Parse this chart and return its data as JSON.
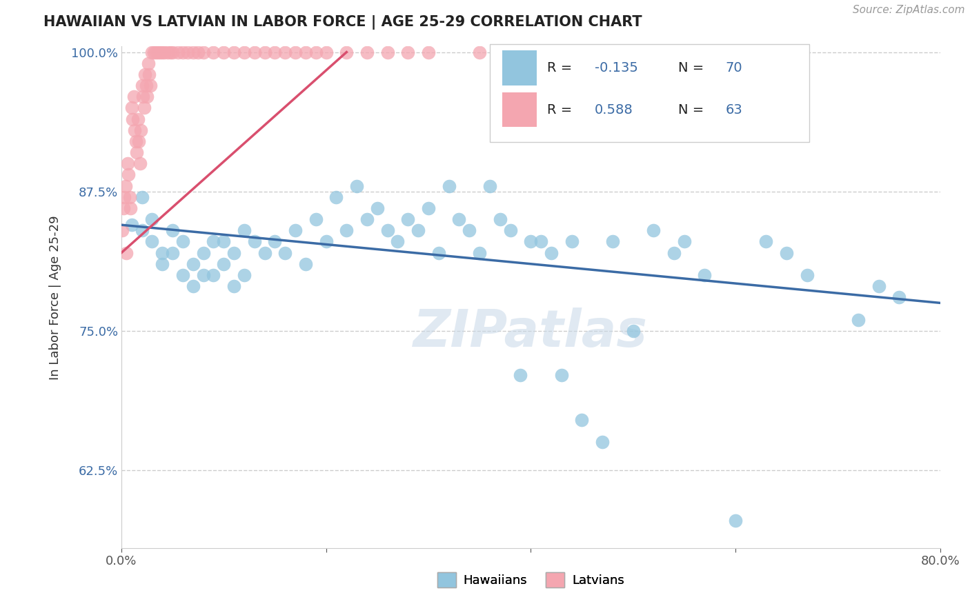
{
  "title": "HAWAIIAN VS LATVIAN IN LABOR FORCE | AGE 25-29 CORRELATION CHART",
  "source_text": "Source: ZipAtlas.com",
  "ylabel": "In Labor Force | Age 25-29",
  "xlim": [
    0.0,
    0.8
  ],
  "ylim": [
    0.555,
    1.005
  ],
  "xticks": [
    0.0,
    0.2,
    0.4,
    0.6,
    0.8
  ],
  "xtick_labels": [
    "0.0%",
    "",
    "",
    "",
    "80.0%"
  ],
  "yticks": [
    0.625,
    0.75,
    0.875,
    1.0
  ],
  "ytick_labels": [
    "62.5%",
    "75.0%",
    "87.5%",
    "100.0%"
  ],
  "hawaiian_color": "#92C5DE",
  "latvian_color": "#F4A6B0",
  "hawaiian_line_color": "#3B6BA5",
  "latvian_line_color": "#D94F6E",
  "background_color": "#FFFFFF",
  "watermark_text": "ZIPatlas",
  "hawaiian_x": [
    0.01,
    0.02,
    0.02,
    0.03,
    0.03,
    0.04,
    0.04,
    0.05,
    0.05,
    0.06,
    0.06,
    0.07,
    0.07,
    0.08,
    0.08,
    0.09,
    0.09,
    0.1,
    0.1,
    0.11,
    0.11,
    0.12,
    0.12,
    0.13,
    0.14,
    0.15,
    0.16,
    0.17,
    0.18,
    0.19,
    0.2,
    0.21,
    0.22,
    0.23,
    0.24,
    0.25,
    0.26,
    0.27,
    0.28,
    0.29,
    0.3,
    0.31,
    0.32,
    0.33,
    0.34,
    0.35,
    0.36,
    0.37,
    0.38,
    0.39,
    0.4,
    0.41,
    0.42,
    0.43,
    0.44,
    0.45,
    0.47,
    0.48,
    0.5,
    0.52,
    0.54,
    0.55,
    0.57,
    0.6,
    0.63,
    0.65,
    0.67,
    0.72,
    0.74,
    0.76
  ],
  "hawaiian_y": [
    0.845,
    0.87,
    0.84,
    0.85,
    0.83,
    0.82,
    0.81,
    0.84,
    0.82,
    0.8,
    0.83,
    0.81,
    0.79,
    0.8,
    0.82,
    0.83,
    0.8,
    0.81,
    0.83,
    0.82,
    0.79,
    0.8,
    0.84,
    0.83,
    0.82,
    0.83,
    0.82,
    0.84,
    0.81,
    0.85,
    0.83,
    0.87,
    0.84,
    0.88,
    0.85,
    0.86,
    0.84,
    0.83,
    0.85,
    0.84,
    0.86,
    0.82,
    0.88,
    0.85,
    0.84,
    0.82,
    0.88,
    0.85,
    0.84,
    0.71,
    0.83,
    0.83,
    0.82,
    0.71,
    0.83,
    0.67,
    0.65,
    0.83,
    0.75,
    0.84,
    0.82,
    0.83,
    0.8,
    0.58,
    0.83,
    0.82,
    0.8,
    0.76,
    0.79,
    0.78
  ],
  "latvian_x": [
    0.001,
    0.002,
    0.003,
    0.004,
    0.005,
    0.006,
    0.007,
    0.008,
    0.009,
    0.01,
    0.011,
    0.012,
    0.013,
    0.014,
    0.015,
    0.016,
    0.017,
    0.018,
    0.019,
    0.02,
    0.021,
    0.022,
    0.023,
    0.024,
    0.025,
    0.026,
    0.027,
    0.028,
    0.03,
    0.032,
    0.034,
    0.036,
    0.038,
    0.04,
    0.042,
    0.045,
    0.048,
    0.05,
    0.055,
    0.06,
    0.065,
    0.07,
    0.075,
    0.08,
    0.09,
    0.1,
    0.11,
    0.12,
    0.13,
    0.14,
    0.15,
    0.16,
    0.17,
    0.18,
    0.19,
    0.2,
    0.22,
    0.24,
    0.26,
    0.28,
    0.3,
    0.35,
    0.4
  ],
  "latvian_y": [
    0.84,
    0.86,
    0.87,
    0.88,
    0.82,
    0.9,
    0.89,
    0.87,
    0.86,
    0.95,
    0.94,
    0.96,
    0.93,
    0.92,
    0.91,
    0.94,
    0.92,
    0.9,
    0.93,
    0.97,
    0.96,
    0.95,
    0.98,
    0.97,
    0.96,
    0.99,
    0.98,
    0.97,
    1.0,
    1.0,
    1.0,
    1.0,
    1.0,
    1.0,
    1.0,
    1.0,
    1.0,
    1.0,
    1.0,
    1.0,
    1.0,
    1.0,
    1.0,
    1.0,
    1.0,
    1.0,
    1.0,
    1.0,
    1.0,
    1.0,
    1.0,
    1.0,
    1.0,
    1.0,
    1.0,
    1.0,
    1.0,
    1.0,
    1.0,
    1.0,
    1.0,
    1.0,
    1.0
  ],
  "hawaiian_trend_x": [
    0.0,
    0.8
  ],
  "hawaiian_trend_y": [
    0.845,
    0.775
  ],
  "latvian_trend_x": [
    0.0,
    0.22
  ],
  "latvian_trend_y": [
    0.82,
    1.0
  ]
}
